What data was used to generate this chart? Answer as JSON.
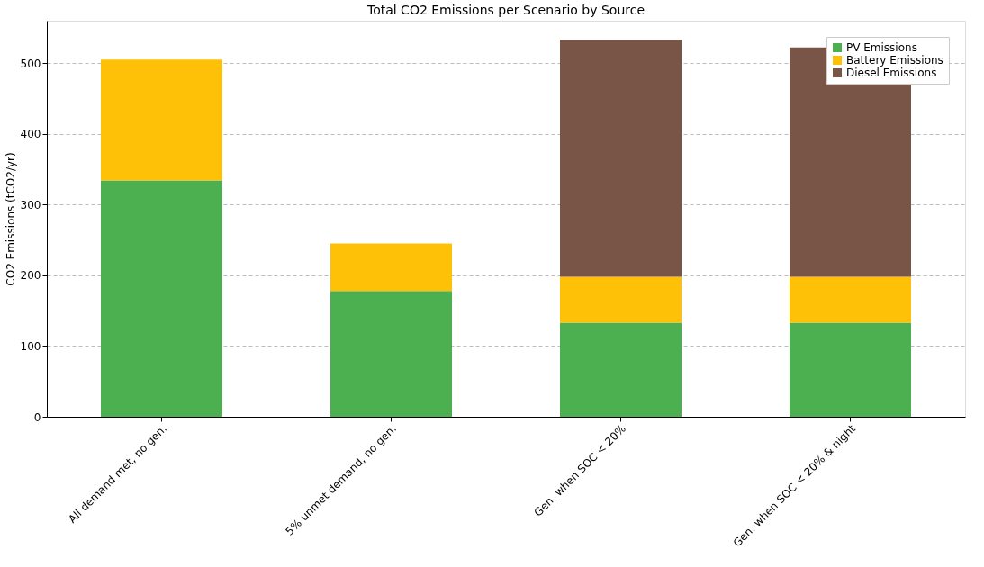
{
  "chart_data": {
    "type": "bar",
    "title": "Total CO2 Emissions per Scenario by Source",
    "ylabel": "CO2 Emissions (tCO2/yr)",
    "categories": [
      "All demand met, no gen.",
      "5% unmet demand, no gen.",
      "Gen. when SOC < 20%",
      "Gen. when SOC < 20% & night"
    ],
    "stacked": true,
    "series": [
      {
        "name": "PV Emissions",
        "color": "#4caf50",
        "values": [
          334,
          178,
          133,
          133
        ]
      },
      {
        "name": "Battery Emissions",
        "color": "#ffc107",
        "values": [
          171,
          67,
          65,
          65
        ]
      },
      {
        "name": "Diesel Emissions",
        "color": "#795548",
        "values": [
          0,
          0,
          335,
          324
        ]
      }
    ],
    "ylim": [
      0,
      560
    ],
    "yticks": [
      0,
      100,
      200,
      300,
      400,
      500
    ],
    "grid": "y",
    "legend": "top right"
  }
}
